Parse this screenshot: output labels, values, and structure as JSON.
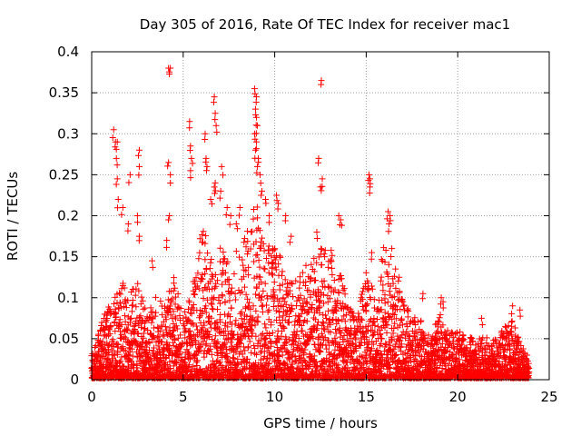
{
  "chart_data": {
    "type": "scatter",
    "title": "Day 305 of 2016, Rate Of TEC Index for receiver mac1",
    "xlabel": "GPS time / hours",
    "ylabel": "ROTI / TECUs",
    "xlim": [
      0,
      25
    ],
    "ylim": [
      0,
      0.4
    ],
    "xticks": [
      0,
      5,
      10,
      15,
      20,
      25
    ],
    "xtick_labels": [
      "0",
      "5",
      "10",
      "15",
      "20",
      "25"
    ],
    "yticks": [
      0,
      0.05,
      0.1,
      0.15,
      0.2,
      0.25,
      0.3,
      0.35,
      0.4
    ],
    "ytick_labels": [
      "0",
      "0.05",
      "0.1",
      "0.15",
      "0.2",
      "0.25",
      "0.3",
      "0.35",
      "0.4"
    ],
    "grid": true,
    "marker": "+",
    "color": "#ff0000",
    "envelope": {
      "hours": [
        0,
        0.5,
        1,
        1.5,
        2,
        2.5,
        3,
        3.5,
        4,
        4.5,
        5,
        5.5,
        6,
        6.5,
        7,
        7.5,
        8,
        8.5,
        9,
        9.5,
        10,
        10.5,
        11,
        11.5,
        12,
        12.5,
        13,
        13.5,
        14,
        14.5,
        15,
        15.5,
        16,
        16.5,
        17,
        17.5,
        18,
        18.5,
        19,
        19.5,
        20,
        20.5,
        21,
        21.5,
        22,
        22.5,
        23,
        23.5,
        24
      ],
      "upper_roti": [
        0.03,
        0.07,
        0.09,
        0.13,
        0.1,
        0.12,
        0.08,
        0.1,
        0.1,
        0.13,
        0.08,
        0.11,
        0.2,
        0.15,
        0.17,
        0.14,
        0.16,
        0.18,
        0.22,
        0.15,
        0.18,
        0.13,
        0.12,
        0.13,
        0.15,
        0.16,
        0.16,
        0.14,
        0.09,
        0.07,
        0.14,
        0.1,
        0.17,
        0.12,
        0.1,
        0.08,
        0.07,
        0.05,
        0.08,
        0.06,
        0.06,
        0.05,
        0.05,
        0.05,
        0.05,
        0.06,
        0.07,
        0.04,
        0.02
      ]
    },
    "outliers": [
      {
        "x": 1.2,
        "y": 0.305
      },
      {
        "x": 1.3,
        "y": 0.29
      },
      {
        "x": 1.4,
        "y": 0.29
      },
      {
        "x": 1.35,
        "y": 0.27
      },
      {
        "x": 1.4,
        "y": 0.245
      },
      {
        "x": 1.45,
        "y": 0.22
      },
      {
        "x": 1.7,
        "y": 0.21
      },
      {
        "x": 2.1,
        "y": 0.25
      },
      {
        "x": 2.0,
        "y": 0.19
      },
      {
        "x": 2.6,
        "y": 0.28
      },
      {
        "x": 2.6,
        "y": 0.26
      },
      {
        "x": 2.5,
        "y": 0.2
      },
      {
        "x": 2.6,
        "y": 0.175
      },
      {
        "x": 3.3,
        "y": 0.145
      },
      {
        "x": 4.2,
        "y": 0.38
      },
      {
        "x": 4.3,
        "y": 0.38
      },
      {
        "x": 4.2,
        "y": 0.265
      },
      {
        "x": 4.3,
        "y": 0.25
      },
      {
        "x": 4.25,
        "y": 0.2
      },
      {
        "x": 4.1,
        "y": 0.17
      },
      {
        "x": 5.35,
        "y": 0.315
      },
      {
        "x": 5.4,
        "y": 0.285
      },
      {
        "x": 5.45,
        "y": 0.27
      },
      {
        "x": 5.4,
        "y": 0.255
      },
      {
        "x": 6.2,
        "y": 0.3
      },
      {
        "x": 6.25,
        "y": 0.27
      },
      {
        "x": 6.3,
        "y": 0.26
      },
      {
        "x": 6.5,
        "y": 0.22
      },
      {
        "x": 6.7,
        "y": 0.345
      },
      {
        "x": 6.75,
        "y": 0.325
      },
      {
        "x": 6.8,
        "y": 0.31
      },
      {
        "x": 6.7,
        "y": 0.235
      },
      {
        "x": 6.75,
        "y": 0.24
      },
      {
        "x": 7.1,
        "y": 0.26
      },
      {
        "x": 7.05,
        "y": 0.23
      },
      {
        "x": 7.4,
        "y": 0.21
      },
      {
        "x": 7.6,
        "y": 0.2
      },
      {
        "x": 7.9,
        "y": 0.19
      },
      {
        "x": 8.1,
        "y": 0.21
      },
      {
        "x": 8.9,
        "y": 0.355
      },
      {
        "x": 9.0,
        "y": 0.345
      },
      {
        "x": 8.95,
        "y": 0.33
      },
      {
        "x": 9.0,
        "y": 0.32
      },
      {
        "x": 9.05,
        "y": 0.31
      },
      {
        "x": 8.9,
        "y": 0.3
      },
      {
        "x": 9.0,
        "y": 0.29
      },
      {
        "x": 8.95,
        "y": 0.28
      },
      {
        "x": 9.1,
        "y": 0.27
      },
      {
        "x": 9.05,
        "y": 0.26
      },
      {
        "x": 9.2,
        "y": 0.25
      },
      {
        "x": 9.3,
        "y": 0.23
      },
      {
        "x": 9.5,
        "y": 0.22
      },
      {
        "x": 9.7,
        "y": 0.2
      },
      {
        "x": 10.1,
        "y": 0.225
      },
      {
        "x": 10.2,
        "y": 0.215
      },
      {
        "x": 10.6,
        "y": 0.2
      },
      {
        "x": 10.9,
        "y": 0.175
      },
      {
        "x": 12.4,
        "y": 0.27
      },
      {
        "x": 12.55,
        "y": 0.365
      },
      {
        "x": 12.6,
        "y": 0.245
      },
      {
        "x": 12.5,
        "y": 0.235
      },
      {
        "x": 12.3,
        "y": 0.18
      },
      {
        "x": 13.5,
        "y": 0.2
      },
      {
        "x": 13.6,
        "y": 0.195
      },
      {
        "x": 15.15,
        "y": 0.25
      },
      {
        "x": 15.2,
        "y": 0.245
      },
      {
        "x": 15.2,
        "y": 0.235
      },
      {
        "x": 15.3,
        "y": 0.155
      },
      {
        "x": 16.2,
        "y": 0.205
      },
      {
        "x": 16.3,
        "y": 0.2
      },
      {
        "x": 16.25,
        "y": 0.19
      },
      {
        "x": 16.4,
        "y": 0.16
      },
      {
        "x": 16.6,
        "y": 0.135
      },
      {
        "x": 16.8,
        "y": 0.125
      },
      {
        "x": 18.1,
        "y": 0.105
      },
      {
        "x": 19.1,
        "y": 0.1
      },
      {
        "x": 19.2,
        "y": 0.095
      },
      {
        "x": 21.3,
        "y": 0.075
      },
      {
        "x": 22.6,
        "y": 0.065
      },
      {
        "x": 23.0,
        "y": 0.09
      },
      {
        "x": 23.4,
        "y": 0.085
      }
    ]
  }
}
